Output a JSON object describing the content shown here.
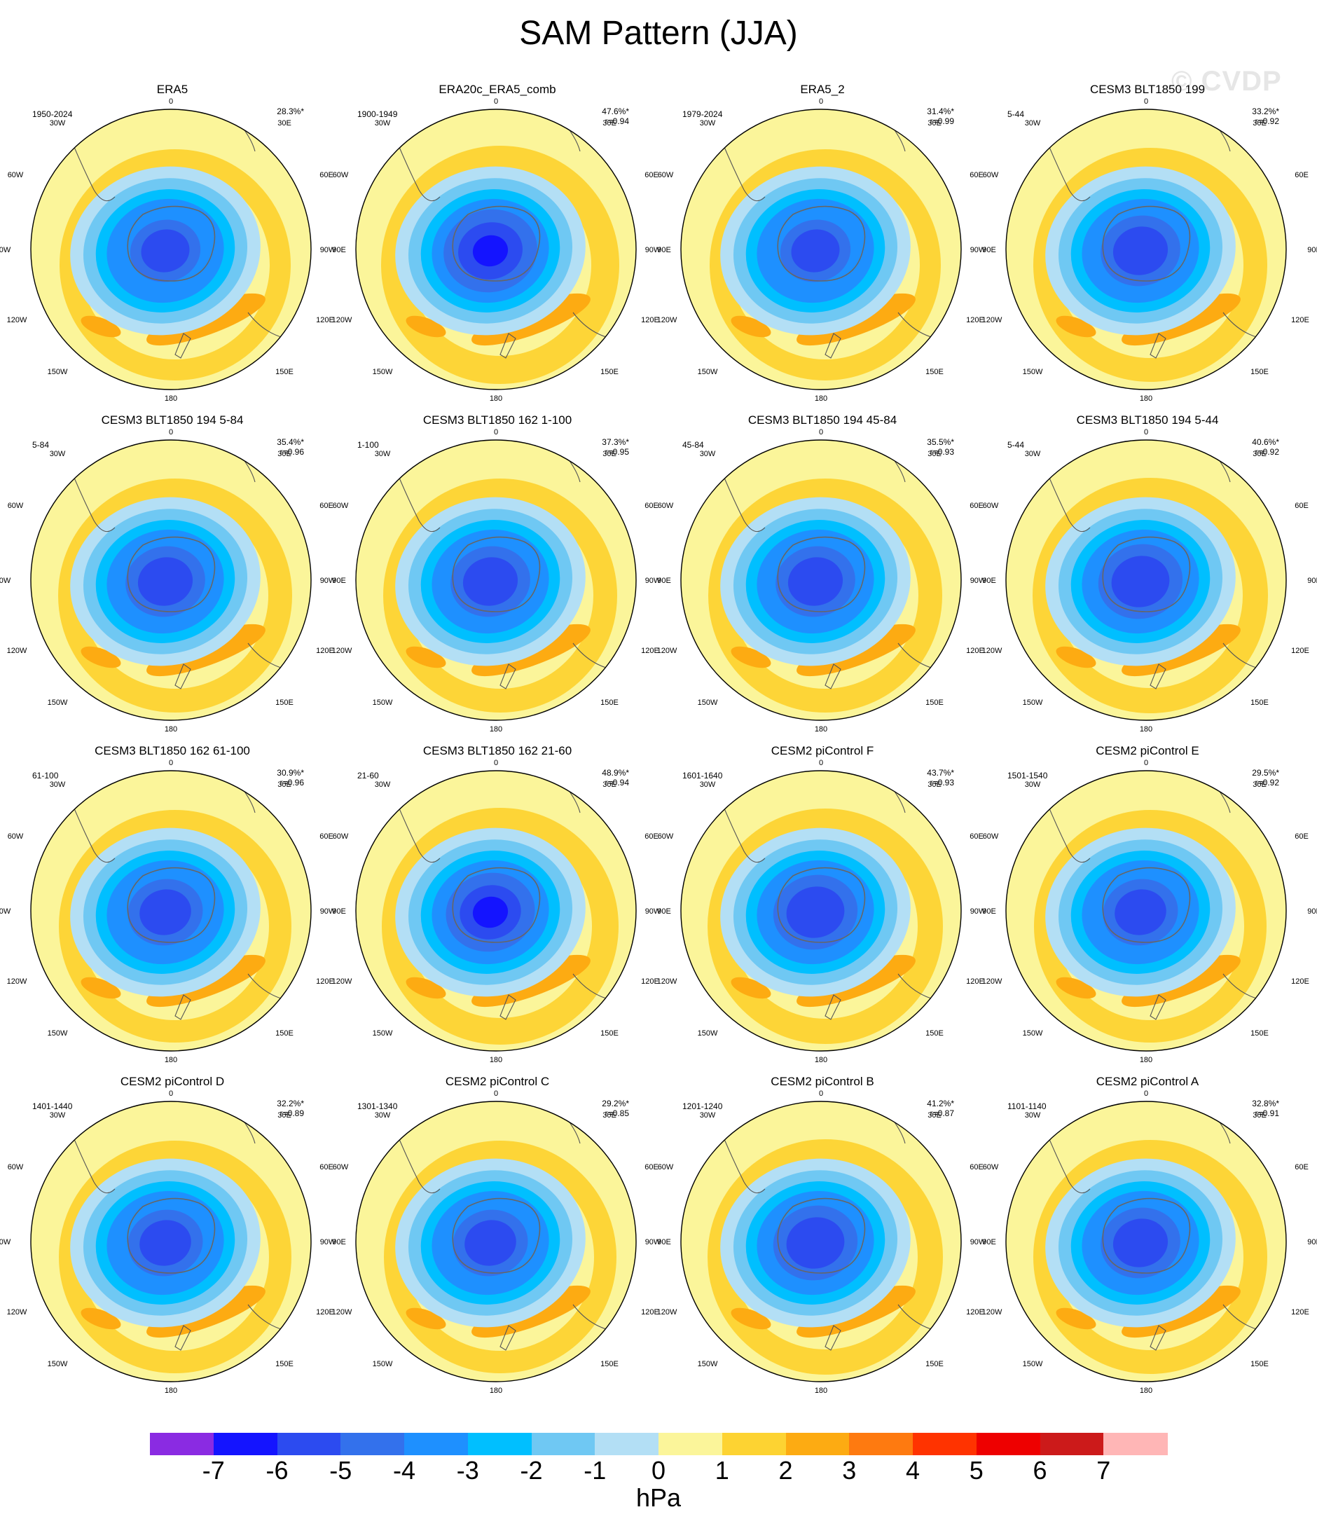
{
  "title": "SAM Pattern (JJA)",
  "watermark": "© CVDP",
  "map_labels": {
    "top": "0",
    "bottom": "180",
    "left_upper": "30W",
    "left_mid_upper": "60W",
    "left_mid": "90W",
    "left_mid_lower": "120W",
    "left_lower": "150W",
    "right_upper": "30E",
    "right_mid_upper": "60E",
    "right_mid": "90E",
    "right_mid_lower": "120E",
    "right_lower": "150E"
  },
  "panels": [
    {
      "title": "ERA5",
      "years": "1950-2024",
      "pct": "28.3%*",
      "r": "",
      "strength": 0.75
    },
    {
      "title": "ERA20c_ERA5_comb",
      "years": "1900-1949",
      "pct": "47.6%*",
      "r": "r=0.94",
      "strength": 1.0
    },
    {
      "title": "ERA5_2",
      "years": "1979-2024",
      "pct": "31.4%*",
      "r": "r=0.99",
      "strength": 0.75
    },
    {
      "title": "CESM3 BLT1850 199",
      "years": "5-44",
      "pct": "33.2%*",
      "r": "r=0.92",
      "strength": 0.85
    },
    {
      "title": "CESM3 BLT1850 194 5-84",
      "years": "5-84",
      "pct": "35.4%*",
      "r": "r=0.96",
      "strength": 0.85
    },
    {
      "title": "CESM3 BLT1850 162 1-100",
      "years": "1-100",
      "pct": "37.3%*",
      "r": "r=0.95",
      "strength": 0.85
    },
    {
      "title": "CESM3 BLT1850 194 45-84",
      "years": "45-84",
      "pct": "35.5%*",
      "r": "r=0.93",
      "strength": 0.85
    },
    {
      "title": "CESM3 BLT1850 194 5-44",
      "years": "5-44",
      "pct": "40.6%*",
      "r": "r=0.92",
      "strength": 0.9
    },
    {
      "title": "CESM3 BLT1850 162 61-100",
      "years": "61-100",
      "pct": "30.9%*",
      "r": "r=0.96",
      "strength": 0.8
    },
    {
      "title": "CESM3 BLT1850 162 21-60",
      "years": "21-60",
      "pct": "48.9%*",
      "r": "r=0.94",
      "strength": 0.95
    },
    {
      "title": "CESM2 piControl F",
      "years": "1601-1640",
      "pct": "43.7%*",
      "r": "r=0.93",
      "strength": 0.9
    },
    {
      "title": "CESM2 piControl E",
      "years": "1501-1540",
      "pct": "29.5%*",
      "r": "r=0.92",
      "strength": 0.8
    },
    {
      "title": "CESM2 piControl D",
      "years": "1401-1440",
      "pct": "32.2%*",
      "r": "r=0.89",
      "strength": 0.8
    },
    {
      "title": "CESM2 piControl C",
      "years": "1301-1340",
      "pct": "29.2%*",
      "r": "r=0.85",
      "strength": 0.8
    },
    {
      "title": "CESM2 piControl B",
      "years": "1201-1240",
      "pct": "41.2%*",
      "r": "r=0.87",
      "strength": 0.9
    },
    {
      "title": "CESM2 piControl A",
      "years": "1101-1140",
      "pct": "32.8%*",
      "r": "r=0.91",
      "strength": 0.85
    }
  ],
  "colorbar": {
    "units": "hPa",
    "ticks": [
      "-7",
      "-6",
      "-5",
      "-4",
      "-3",
      "-2",
      "-1",
      "0",
      "1",
      "2",
      "3",
      "4",
      "5",
      "6",
      "7"
    ],
    "colors": [
      "#8a2be2",
      "#1414ff",
      "#2c4bf0",
      "#3371ec",
      "#1e90ff",
      "#00bfff",
      "#6fc8f3",
      "#b3dff5",
      "#fbf59a",
      "#fdd332",
      "#fdab12",
      "#fe7a10",
      "#ff3300",
      "#ee0000",
      "#cc1a1a",
      "#ffb6b6"
    ]
  }
}
